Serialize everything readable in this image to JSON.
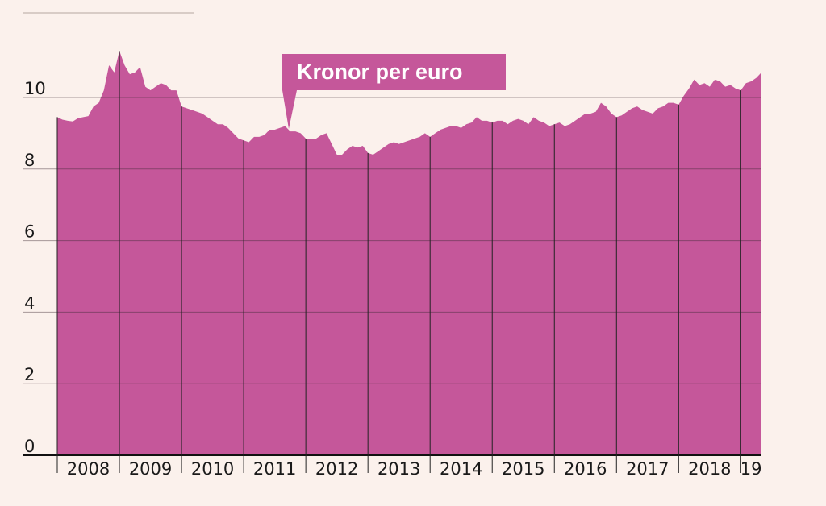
{
  "chart_data": {
    "type": "area",
    "annotation": "Kronor per euro",
    "color": "#c5579a",
    "x": [
      2008,
      2008.083,
      2008.167,
      2008.25,
      2008.333,
      2008.417,
      2008.5,
      2008.583,
      2008.667,
      2008.75,
      2008.833,
      2008.917,
      2009,
      2009.083,
      2009.167,
      2009.25,
      2009.333,
      2009.417,
      2009.5,
      2009.583,
      2009.667,
      2009.75,
      2009.833,
      2009.917,
      2010,
      2010.083,
      2010.167,
      2010.25,
      2010.333,
      2010.417,
      2010.5,
      2010.583,
      2010.667,
      2010.75,
      2010.833,
      2010.917,
      2011,
      2011.083,
      2011.167,
      2011.25,
      2011.333,
      2011.417,
      2011.5,
      2011.583,
      2011.667,
      2011.75,
      2011.833,
      2011.917,
      2012,
      2012.083,
      2012.167,
      2012.25,
      2012.333,
      2012.417,
      2012.5,
      2012.583,
      2012.667,
      2012.75,
      2012.833,
      2012.917,
      2013,
      2013.083,
      2013.167,
      2013.25,
      2013.333,
      2013.417,
      2013.5,
      2013.583,
      2013.667,
      2013.75,
      2013.833,
      2013.917,
      2014,
      2014.083,
      2014.167,
      2014.25,
      2014.333,
      2014.417,
      2014.5,
      2014.583,
      2014.667,
      2014.75,
      2014.833,
      2014.917,
      2015,
      2015.083,
      2015.167,
      2015.25,
      2015.333,
      2015.417,
      2015.5,
      2015.583,
      2015.667,
      2015.75,
      2015.833,
      2015.917,
      2016,
      2016.083,
      2016.167,
      2016.25,
      2016.333,
      2016.417,
      2016.5,
      2016.583,
      2016.667,
      2016.75,
      2016.833,
      2016.917,
      2017,
      2017.083,
      2017.167,
      2017.25,
      2017.333,
      2017.417,
      2017.5,
      2017.583,
      2017.667,
      2017.75,
      2017.833,
      2017.917,
      2018,
      2018.083,
      2018.167,
      2018.25,
      2018.333,
      2018.417,
      2018.5,
      2018.583,
      2018.667,
      2018.75,
      2018.833,
      2018.917,
      2019,
      2019.083,
      2019.167,
      2019.25,
      2019.333
    ],
    "values": [
      9.45,
      9.38,
      9.35,
      9.33,
      9.42,
      9.45,
      9.48,
      9.75,
      9.85,
      10.2,
      10.9,
      10.7,
      11.3,
      10.9,
      10.65,
      10.7,
      10.85,
      10.3,
      10.2,
      10.3,
      10.4,
      10.35,
      10.2,
      10.2,
      9.75,
      9.7,
      9.65,
      9.6,
      9.55,
      9.45,
      9.35,
      9.25,
      9.25,
      9.15,
      9.0,
      8.85,
      8.8,
      8.75,
      8.9,
      8.9,
      8.95,
      9.1,
      9.1,
      9.15,
      9.2,
      9.05,
      9.05,
      9.0,
      8.85,
      8.85,
      8.85,
      8.95,
      9.0,
      8.7,
      8.4,
      8.4,
      8.55,
      8.65,
      8.6,
      8.65,
      8.45,
      8.4,
      8.5,
      8.6,
      8.7,
      8.75,
      8.7,
      8.75,
      8.8,
      8.85,
      8.9,
      9.0,
      8.9,
      9.0,
      9.1,
      9.15,
      9.2,
      9.2,
      9.15,
      9.25,
      9.3,
      9.45,
      9.35,
      9.35,
      9.3,
      9.35,
      9.35,
      9.25,
      9.35,
      9.4,
      9.35,
      9.25,
      9.45,
      9.35,
      9.3,
      9.2,
      9.25,
      9.3,
      9.2,
      9.25,
      9.35,
      9.45,
      9.55,
      9.55,
      9.6,
      9.85,
      9.75,
      9.55,
      9.45,
      9.5,
      9.6,
      9.7,
      9.75,
      9.65,
      9.6,
      9.55,
      9.7,
      9.75,
      9.85,
      9.85,
      9.8,
      10.05,
      10.25,
      10.5,
      10.35,
      10.4,
      10.3,
      10.5,
      10.45,
      10.3,
      10.35,
      10.25,
      10.2,
      10.4,
      10.45,
      10.55,
      10.7
    ],
    "xlim": [
      2008,
      2019.333
    ],
    "xticks": [
      2008,
      2009,
      2010,
      2011,
      2012,
      2013,
      2014,
      2015,
      2016,
      2017,
      2018,
      {
        "value": 2019,
        "label": "19"
      }
    ],
    "ylim": [
      0,
      10
    ],
    "yticks": [
      0,
      2,
      4,
      6,
      8,
      10
    ],
    "grid": true
  }
}
